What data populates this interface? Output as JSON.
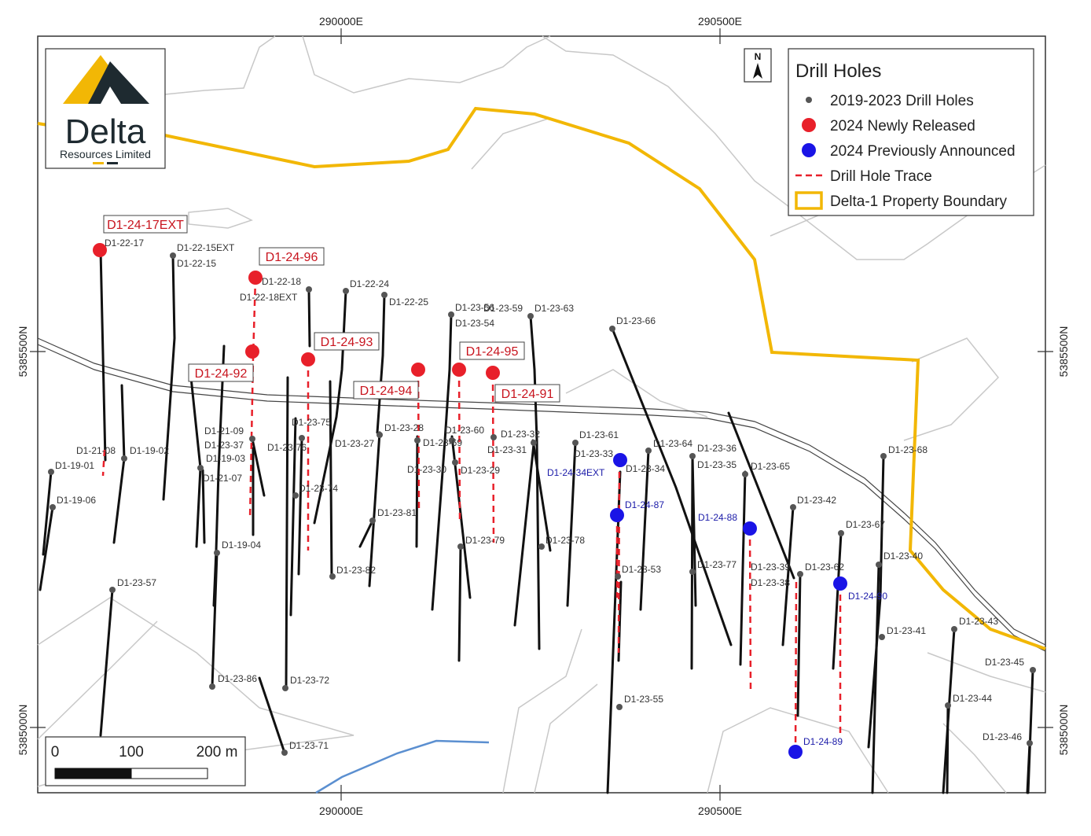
{
  "map": {
    "coords": {
      "top": [
        "290000E",
        "290500E"
      ],
      "bottom": [
        "290000E",
        "290500E"
      ],
      "left": [
        "5385500N",
        "5385000N"
      ],
      "right": [
        "5385500N",
        "5385000N"
      ]
    },
    "north_arrow": "N",
    "logo": {
      "name": "Delta",
      "subtitle": "Resources Limited"
    },
    "legend": {
      "title": "Drill Holes",
      "items": [
        {
          "label": "2019-2023 Drill Holes",
          "symbol": "dot",
          "color": "#555555"
        },
        {
          "label": "2024 Newly Released",
          "symbol": "dot",
          "color": "#e8202a"
        },
        {
          "label": "2024 Previously Announced",
          "symbol": "dot",
          "color": "#1a14e6"
        },
        {
          "label": "Drill Hole Trace",
          "symbol": "dash",
          "color": "#e8202a"
        },
        {
          "label": "Delta-1 Property Boundary",
          "symbol": "box",
          "color": "#f2b705"
        }
      ]
    },
    "scale_bar": {
      "labels": [
        "0",
        "100",
        "200 m"
      ]
    },
    "red_holes": [
      "D1-24-17EXT",
      "D1-24-96",
      "D1-24-93",
      "D1-24-92",
      "D1-24-94",
      "D1-24-95",
      "D1-24-91"
    ],
    "blue_holes": [
      "D1-24-34EXT",
      "D1-24-87",
      "D1-24-88",
      "D1-24-90",
      "D1-24-89"
    ],
    "grey_holes": [
      "D1-22-17",
      "D1-22-15EXT",
      "D1-22-15",
      "D1-22-18",
      "D1-22-18EXT",
      "D1-22-24",
      "D1-22-25",
      "D1-23-56",
      "D1-23-59",
      "D1-23-54",
      "D1-23-63",
      "D1-23-66",
      "D1-21-09",
      "D1-23-37",
      "D1-19-03",
      "D1-21-07",
      "D1-21-08",
      "D1-19-02",
      "D1-19-01",
      "D1-19-06",
      "D1-23-75",
      "D1-23-76",
      "D1-23-74",
      "D1-23-27",
      "D1-23-28",
      "D1-23-69",
      "D1-23-60",
      "D1-23-30",
      "D1-23-29",
      "D1-23-32",
      "D1-23-31",
      "D1-23-61",
      "D1-23-33",
      "D1-23-34",
      "D1-23-64",
      "D1-23-36",
      "D1-23-35",
      "D1-23-65",
      "D1-23-68",
      "D1-23-42",
      "D1-23-67",
      "D1-23-40",
      "D1-19-04",
      "D1-23-81",
      "D1-23-82",
      "D1-23-79",
      "D1-23-78",
      "D1-23-53",
      "D1-23-77",
      "D1-23-39",
      "D1-23-38",
      "D1-23-62",
      "D1-23-43",
      "D1-23-41",
      "D1-23-57",
      "D1-23-86",
      "D1-23-72",
      "D1-23-55",
      "D1-23-45",
      "D1-23-44",
      "D1-23-46",
      "D1-23-71"
    ]
  }
}
